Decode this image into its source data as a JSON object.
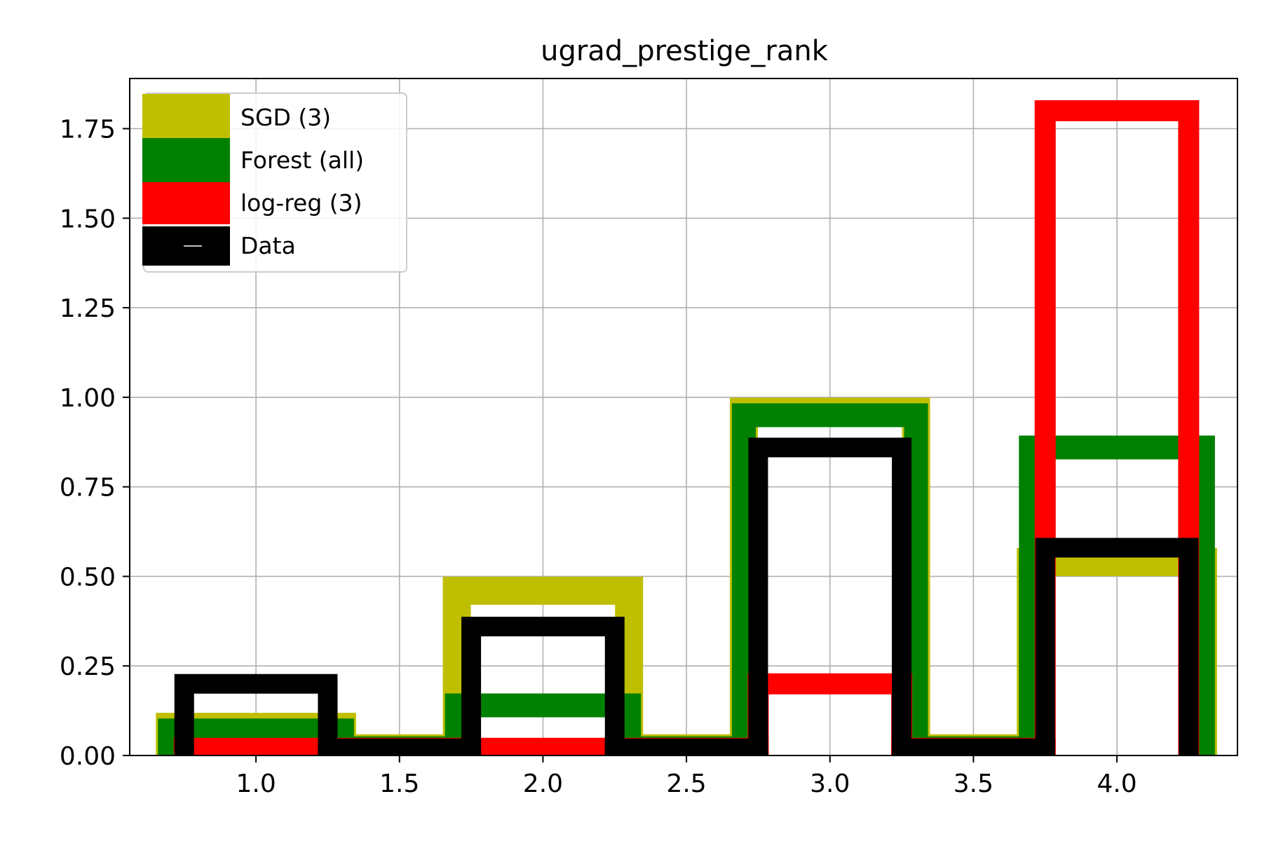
{
  "chart_data": {
    "type": "bar",
    "title": "ugrad_prestige_rank",
    "xlabel": "",
    "ylabel": "",
    "xlim": [
      0.56,
      4.42
    ],
    "ylim": [
      0,
      1.89
    ],
    "x_ticks": [
      "1.0",
      "1.5",
      "2.0",
      "2.5",
      "3.0",
      "3.5",
      "4.0"
    ],
    "y_ticks": [
      "0.00",
      "0.25",
      "0.50",
      "0.75",
      "1.00",
      "1.25",
      "1.50",
      "1.75"
    ],
    "grid": true,
    "legend_position": "top-left",
    "series": [
      {
        "name": "SGD (3)",
        "color": "#bfbf00",
        "bins": [
          [
            0.7,
            1.3
          ],
          [
            1.3,
            1.7
          ],
          [
            1.7,
            2.3
          ],
          [
            2.3,
            2.7
          ],
          [
            2.7,
            3.3
          ],
          [
            3.3,
            3.7
          ],
          [
            3.7,
            4.3
          ]
        ],
        "values": [
          0.08,
          0.02,
          0.46,
          0.02,
          0.96,
          0.02,
          0.54
        ]
      },
      {
        "name": "Forest (all)",
        "color": "#008000",
        "bins": [
          [
            0.7,
            1.3
          ],
          [
            1.3,
            1.7
          ],
          [
            1.7,
            2.3
          ],
          [
            2.3,
            2.7
          ],
          [
            2.7,
            3.3
          ],
          [
            3.3,
            3.7
          ],
          [
            3.7,
            4.3
          ]
        ],
        "values": [
          0.07,
          0.02,
          0.14,
          0.02,
          0.95,
          0.02,
          0.86
        ]
      },
      {
        "name": "log-reg (3)",
        "color": "#ff0000",
        "bins": [
          [
            0.75,
            1.25
          ],
          [
            1.25,
            1.75
          ],
          [
            1.75,
            2.25
          ],
          [
            2.25,
            2.75
          ],
          [
            2.75,
            3.25
          ],
          [
            3.25,
            3.75
          ],
          [
            3.75,
            4.25
          ]
        ],
        "values": [
          0.02,
          0.02,
          0.02,
          0.02,
          0.2,
          0.02,
          1.8
        ]
      },
      {
        "name": "Data",
        "color": "#000000",
        "bins": [
          [
            0.75,
            1.25
          ],
          [
            1.25,
            1.75
          ],
          [
            1.75,
            2.25
          ],
          [
            2.25,
            2.75
          ],
          [
            2.75,
            3.25
          ],
          [
            3.25,
            3.75
          ],
          [
            3.75,
            4.25
          ]
        ],
        "values": [
          0.2,
          0.02,
          0.36,
          0.02,
          0.86,
          0.02,
          0.58
        ]
      }
    ]
  }
}
